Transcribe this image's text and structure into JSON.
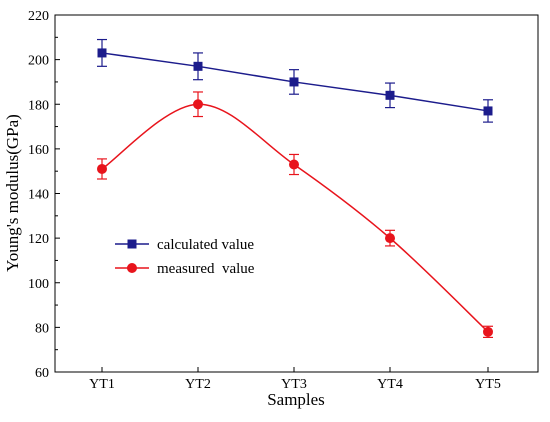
{
  "chart_data": {
    "type": "line",
    "title": "",
    "xlabel": "Samples",
    "ylabel": "Young's modulus(GPa)",
    "categories": [
      "YT1",
      "YT2",
      "YT3",
      "YT4",
      "YT5"
    ],
    "ylim": [
      60,
      220
    ],
    "yticks": [
      60,
      80,
      100,
      120,
      140,
      160,
      180,
      200,
      220
    ],
    "grid": false,
    "legend_position": "center-left",
    "series": [
      {
        "name": "calculated value",
        "color": "#1c1c8c",
        "marker": "square",
        "smooth": false,
        "values": [
          203,
          197,
          190,
          184,
          177
        ],
        "error": [
          6,
          6,
          5.5,
          5.5,
          5
        ]
      },
      {
        "name": "measured  value",
        "color": "#e8141c",
        "marker": "circle",
        "smooth": true,
        "values": [
          151,
          180,
          153,
          120,
          78
        ],
        "error": [
          4.5,
          5.5,
          4.5,
          3.5,
          2.5
        ]
      }
    ]
  }
}
